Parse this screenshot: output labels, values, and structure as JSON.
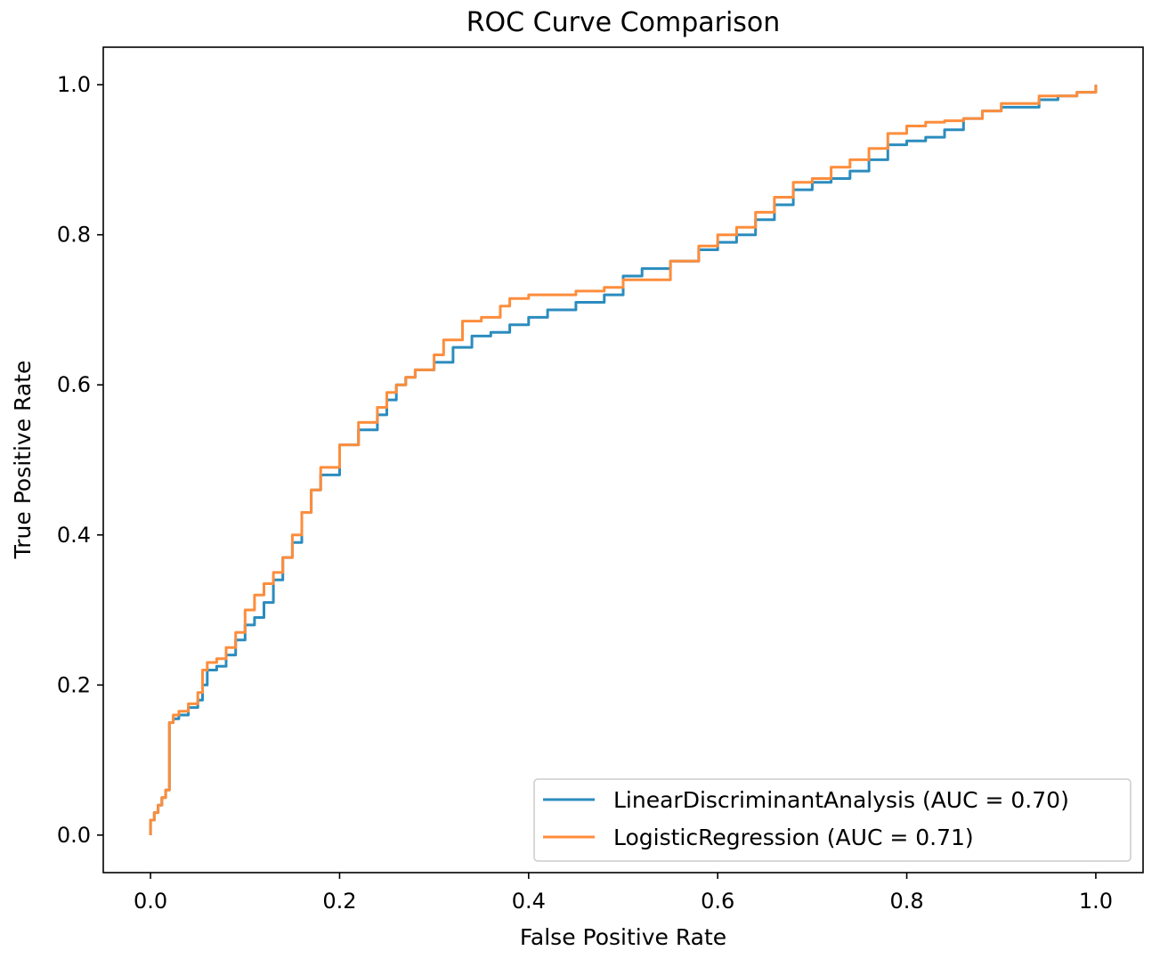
{
  "chart_data": {
    "type": "line",
    "title": "ROC Curve Comparison",
    "xlabel": "False Positive Rate",
    "ylabel": "True Positive Rate",
    "xlim": [
      -0.05,
      1.05
    ],
    "ylim": [
      -0.05,
      1.05
    ],
    "xticks": [
      "0.0",
      "0.2",
      "0.4",
      "0.6",
      "0.8",
      "1.0"
    ],
    "yticks": [
      "0.0",
      "0.2",
      "0.4",
      "0.6",
      "0.8",
      "1.0"
    ],
    "grid": false,
    "legend_position": "lower-right",
    "series": [
      {
        "name": "LinearDiscriminantAnalysis (AUC = 0.70)",
        "color": "#2b8cbe",
        "x": [
          0.0,
          0.0,
          0.004,
          0.008,
          0.012,
          0.016,
          0.02,
          0.02,
          0.024,
          0.03,
          0.04,
          0.05,
          0.055,
          0.06,
          0.07,
          0.08,
          0.09,
          0.1,
          0.11,
          0.12,
          0.13,
          0.14,
          0.15,
          0.16,
          0.17,
          0.18,
          0.2,
          0.22,
          0.24,
          0.25,
          0.26,
          0.27,
          0.28,
          0.3,
          0.32,
          0.34,
          0.36,
          0.38,
          0.4,
          0.42,
          0.45,
          0.48,
          0.5,
          0.52,
          0.55,
          0.58,
          0.6,
          0.62,
          0.64,
          0.66,
          0.68,
          0.7,
          0.72,
          0.74,
          0.76,
          0.78,
          0.8,
          0.82,
          0.84,
          0.86,
          0.88,
          0.9,
          0.92,
          0.94,
          0.96,
          0.98,
          1.0
        ],
        "y": [
          0.0,
          0.02,
          0.03,
          0.04,
          0.05,
          0.06,
          0.08,
          0.15,
          0.155,
          0.16,
          0.17,
          0.18,
          0.2,
          0.22,
          0.225,
          0.24,
          0.26,
          0.28,
          0.29,
          0.31,
          0.34,
          0.37,
          0.39,
          0.43,
          0.46,
          0.48,
          0.52,
          0.54,
          0.56,
          0.58,
          0.6,
          0.61,
          0.62,
          0.63,
          0.65,
          0.665,
          0.67,
          0.68,
          0.69,
          0.7,
          0.71,
          0.72,
          0.745,
          0.755,
          0.765,
          0.78,
          0.79,
          0.8,
          0.82,
          0.84,
          0.86,
          0.87,
          0.875,
          0.885,
          0.9,
          0.92,
          0.925,
          0.93,
          0.94,
          0.955,
          0.965,
          0.97,
          0.97,
          0.98,
          0.985,
          0.99,
          1.0
        ]
      },
      {
        "name": "LogisticRegression (AUC = 0.71)",
        "color": "#fd8d3c",
        "x": [
          0.0,
          0.0,
          0.004,
          0.008,
          0.012,
          0.016,
          0.02,
          0.02,
          0.024,
          0.03,
          0.04,
          0.05,
          0.055,
          0.06,
          0.07,
          0.08,
          0.09,
          0.1,
          0.11,
          0.12,
          0.13,
          0.14,
          0.15,
          0.16,
          0.17,
          0.18,
          0.2,
          0.22,
          0.24,
          0.25,
          0.26,
          0.27,
          0.28,
          0.3,
          0.31,
          0.33,
          0.35,
          0.37,
          0.38,
          0.4,
          0.45,
          0.48,
          0.5,
          0.52,
          0.55,
          0.58,
          0.6,
          0.62,
          0.64,
          0.66,
          0.68,
          0.7,
          0.72,
          0.74,
          0.76,
          0.78,
          0.8,
          0.82,
          0.84,
          0.86,
          0.88,
          0.9,
          0.92,
          0.94,
          0.96,
          0.98,
          1.0
        ],
        "y": [
          0.0,
          0.02,
          0.03,
          0.04,
          0.05,
          0.06,
          0.08,
          0.15,
          0.16,
          0.165,
          0.175,
          0.19,
          0.22,
          0.23,
          0.235,
          0.25,
          0.27,
          0.3,
          0.32,
          0.335,
          0.35,
          0.37,
          0.4,
          0.43,
          0.46,
          0.49,
          0.52,
          0.55,
          0.57,
          0.59,
          0.6,
          0.61,
          0.62,
          0.64,
          0.66,
          0.685,
          0.69,
          0.705,
          0.715,
          0.72,
          0.725,
          0.73,
          0.74,
          0.74,
          0.765,
          0.785,
          0.8,
          0.81,
          0.83,
          0.85,
          0.87,
          0.875,
          0.89,
          0.9,
          0.915,
          0.935,
          0.945,
          0.95,
          0.952,
          0.955,
          0.965,
          0.975,
          0.975,
          0.985,
          0.985,
          0.99,
          1.0
        ]
      }
    ]
  }
}
